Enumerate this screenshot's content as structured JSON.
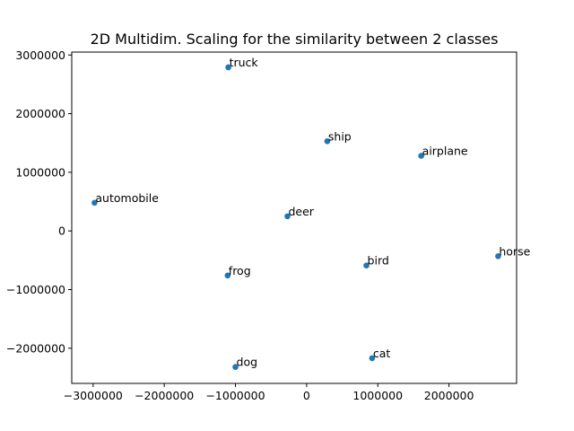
{
  "chart_data": {
    "type": "scatter",
    "title": "2D Multidim. Scaling for the similarity between 2 classes",
    "xlabel": "",
    "ylabel": "",
    "xlim": [
      -3300000,
      2950000
    ],
    "ylim": [
      -2600000,
      3050000
    ],
    "xticks": [
      -3000000,
      -2000000,
      -1000000,
      0,
      1000000,
      2000000
    ],
    "yticks": [
      -2000000,
      -1000000,
      0,
      1000000,
      2000000,
      3000000
    ],
    "grid": false,
    "marker_color": "#1f77b4",
    "points": [
      {
        "label": "truck",
        "x": -1100000,
        "y": 2790000
      },
      {
        "label": "ship",
        "x": 290000,
        "y": 1530000
      },
      {
        "label": "airplane",
        "x": 1610000,
        "y": 1280000
      },
      {
        "label": "automobile",
        "x": -2980000,
        "y": 480000
      },
      {
        "label": "deer",
        "x": -270000,
        "y": 250000
      },
      {
        "label": "horse",
        "x": 2690000,
        "y": -430000
      },
      {
        "label": "bird",
        "x": 840000,
        "y": -590000
      },
      {
        "label": "frog",
        "x": -1110000,
        "y": -760000
      },
      {
        "label": "cat",
        "x": 920000,
        "y": -2170000
      },
      {
        "label": "dog",
        "x": -1000000,
        "y": -2320000
      }
    ]
  }
}
